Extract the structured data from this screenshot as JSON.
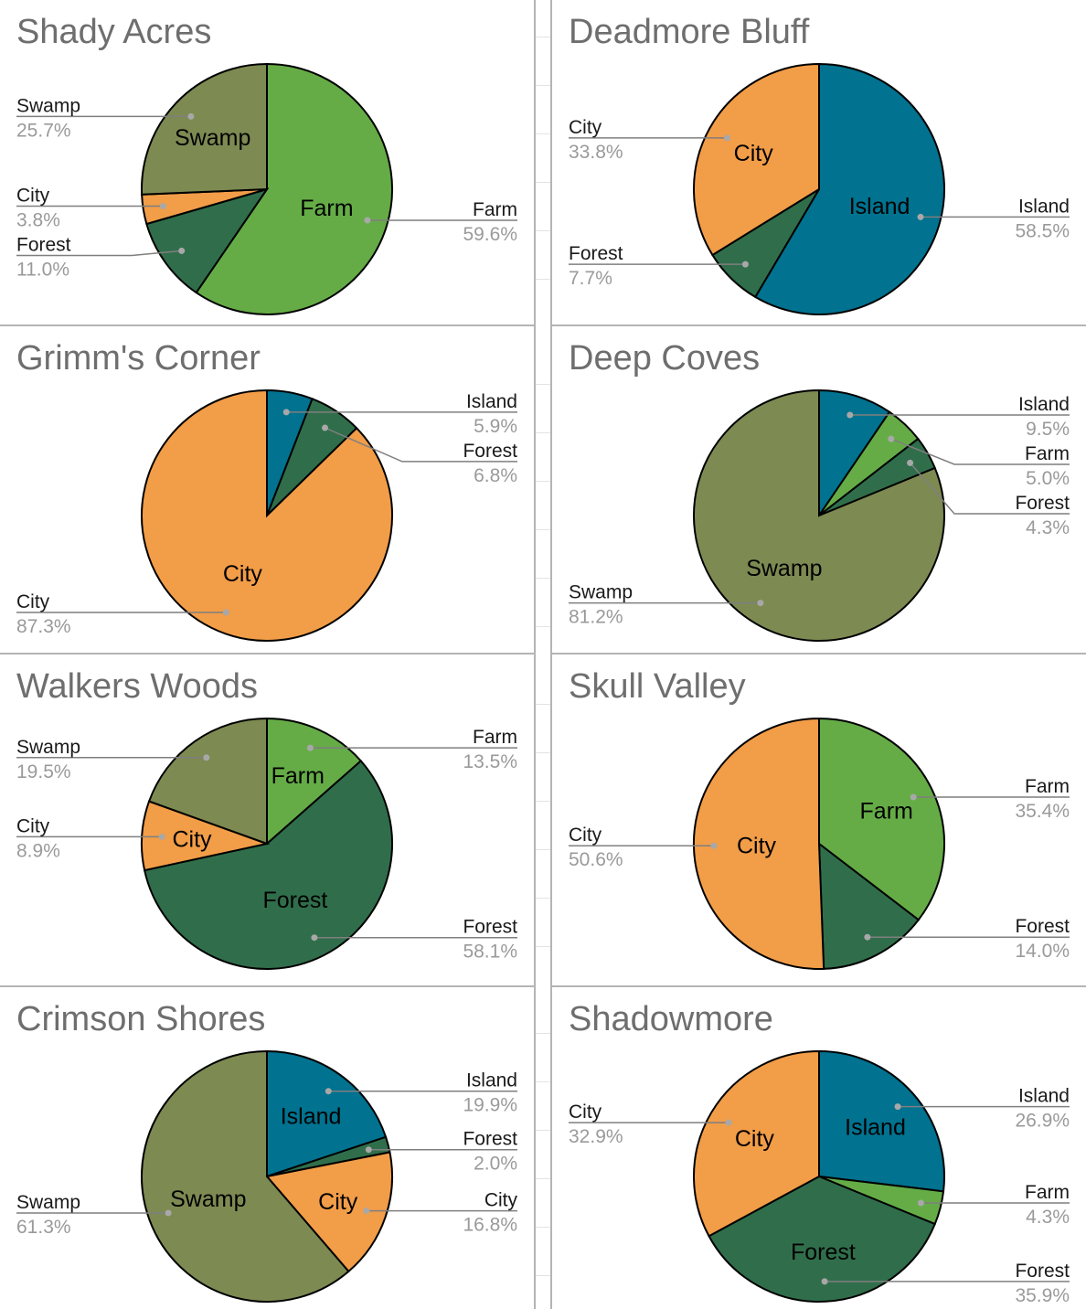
{
  "colors": {
    "Farm": "#65ac47",
    "Swamp": "#7d8a52",
    "City": "#f29d48",
    "Forest": "#306e4b",
    "Island": "#01728f"
  },
  "chart_data": [
    {
      "type": "pie",
      "title": "Shady Acres",
      "startangle": 90,
      "direction": "clockwise",
      "slices": [
        {
          "label": "Farm",
          "value": 59.6,
          "pct": "59.6%",
          "show_inside": true
        },
        {
          "label": "Forest",
          "value": 11.0,
          "pct": "11.0%",
          "show_inside": false
        },
        {
          "label": "City",
          "value": 3.8,
          "pct": "3.8%",
          "show_inside": false
        },
        {
          "label": "Swamp",
          "value": 25.7,
          "pct": "25.7%",
          "show_inside": true
        }
      ]
    },
    {
      "type": "pie",
      "title": "Deadmore Bluff",
      "startangle": 90,
      "direction": "clockwise",
      "slices": [
        {
          "label": "Island",
          "value": 58.5,
          "pct": "58.5%",
          "show_inside": true
        },
        {
          "label": "Forest",
          "value": 7.7,
          "pct": "7.7%",
          "show_inside": false
        },
        {
          "label": "City",
          "value": 33.8,
          "pct": "33.8%",
          "show_inside": true
        }
      ]
    },
    {
      "type": "pie",
      "title": "Grimm's Corner",
      "startangle": 90,
      "direction": "clockwise",
      "slices": [
        {
          "label": "Island",
          "value": 5.9,
          "pct": "5.9%",
          "show_inside": false
        },
        {
          "label": "Forest",
          "value": 6.8,
          "pct": "6.8%",
          "show_inside": false
        },
        {
          "label": "City",
          "value": 87.3,
          "pct": "87.3%",
          "show_inside": true
        }
      ]
    },
    {
      "type": "pie",
      "title": "Deep Coves",
      "startangle": 90,
      "direction": "clockwise",
      "slices": [
        {
          "label": "Island",
          "value": 9.5,
          "pct": "9.5%",
          "show_inside": false
        },
        {
          "label": "Farm",
          "value": 5.0,
          "pct": "5.0%",
          "show_inside": false
        },
        {
          "label": "Forest",
          "value": 4.3,
          "pct": "4.3%",
          "show_inside": false
        },
        {
          "label": "Swamp",
          "value": 81.2,
          "pct": "81.2%",
          "show_inside": true
        }
      ]
    },
    {
      "type": "pie",
      "title": "Walkers Woods",
      "startangle": 90,
      "direction": "clockwise",
      "slices": [
        {
          "label": "Farm",
          "value": 13.5,
          "pct": "13.5%",
          "show_inside": true
        },
        {
          "label": "Forest",
          "value": 58.1,
          "pct": "58.1%",
          "show_inside": true
        },
        {
          "label": "City",
          "value": 8.9,
          "pct": "8.9%",
          "show_inside": true
        },
        {
          "label": "Swamp",
          "value": 19.5,
          "pct": "19.5%",
          "show_inside": false
        }
      ]
    },
    {
      "type": "pie",
      "title": "Skull Valley",
      "startangle": 90,
      "direction": "clockwise",
      "slices": [
        {
          "label": "Farm",
          "value": 35.4,
          "pct": "35.4%",
          "show_inside": true
        },
        {
          "label": "Forest",
          "value": 14.0,
          "pct": "14.0%",
          "show_inside": false
        },
        {
          "label": "City",
          "value": 50.6,
          "pct": "50.6%",
          "show_inside": true
        }
      ]
    },
    {
      "type": "pie",
      "title": "Crimson Shores",
      "startangle": 90,
      "direction": "clockwise",
      "slices": [
        {
          "label": "Island",
          "value": 19.9,
          "pct": "19.9%",
          "show_inside": true
        },
        {
          "label": "Forest",
          "value": 2.0,
          "pct": "2.0%",
          "show_inside": false
        },
        {
          "label": "City",
          "value": 16.8,
          "pct": "16.8%",
          "show_inside": true
        },
        {
          "label": "Swamp",
          "value": 61.3,
          "pct": "61.3%",
          "show_inside": true
        }
      ]
    },
    {
      "type": "pie",
      "title": "Shadowmore",
      "startangle": 90,
      "direction": "clockwise",
      "slices": [
        {
          "label": "Island",
          "value": 26.9,
          "pct": "26.9%",
          "show_inside": true
        },
        {
          "label": "Farm",
          "value": 4.3,
          "pct": "4.3%",
          "show_inside": false
        },
        {
          "label": "Forest",
          "value": 35.9,
          "pct": "35.9%",
          "show_inside": true
        },
        {
          "label": "City",
          "value": 32.9,
          "pct": "32.9%",
          "show_inside": true
        }
      ]
    }
  ]
}
